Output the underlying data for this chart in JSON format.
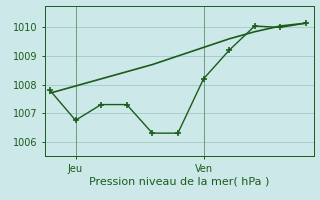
{
  "background_color": "#cce8e8",
  "grid_color": "#aacccc",
  "line_color": "#1a5c1a",
  "title": "Pression niveau de la mer( hPa )",
  "ylim": [
    1005.5,
    1010.75
  ],
  "yticks": [
    1006,
    1007,
    1008,
    1009,
    1010
  ],
  "line1_x": [
    0,
    1,
    2,
    3,
    4,
    5,
    6,
    7,
    8,
    9,
    10
  ],
  "line1_y": [
    1007.7,
    1007.95,
    1008.2,
    1008.45,
    1008.7,
    1009.0,
    1009.3,
    1009.6,
    1009.85,
    1010.05,
    1010.15
  ],
  "line2_x": [
    0,
    1,
    2,
    3,
    4,
    5,
    6,
    7,
    8,
    9,
    10
  ],
  "line2_y": [
    1007.8,
    1006.75,
    1007.3,
    1007.3,
    1006.3,
    1006.3,
    1008.2,
    1009.2,
    1010.05,
    1010.0,
    1010.15
  ],
  "jeu_x": 1,
  "ven_x": 6,
  "xlim": [
    -0.2,
    10.3
  ],
  "title_fontsize": 8,
  "tick_fontsize": 7
}
